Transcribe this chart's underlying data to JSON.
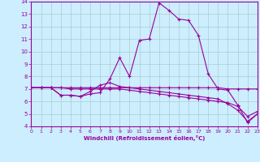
{
  "xlabel": "Windchill (Refroidissement éolien,°C)",
  "bg_color": "#cceeff",
  "grid_color": "#aacccc",
  "line_color": "#990099",
  "xlim": [
    0,
    23
  ],
  "ylim": [
    4,
    14
  ],
  "xticks": [
    0,
    1,
    2,
    3,
    4,
    5,
    6,
    7,
    8,
    9,
    10,
    11,
    12,
    13,
    14,
    15,
    16,
    17,
    18,
    19,
    20,
    21,
    22,
    23
  ],
  "yticks": [
    4,
    5,
    6,
    7,
    8,
    9,
    10,
    11,
    12,
    13,
    14
  ],
  "line1_x": [
    0,
    1,
    2,
    3,
    4,
    5,
    6,
    7,
    8,
    9,
    10,
    11,
    12,
    13,
    14,
    15,
    16,
    17,
    18,
    19,
    20,
    21,
    22,
    23
  ],
  "line1_y": [
    7.1,
    7.1,
    7.1,
    7.1,
    7.1,
    7.1,
    7.1,
    7.1,
    7.1,
    7.1,
    7.1,
    7.1,
    7.1,
    7.1,
    7.1,
    7.1,
    7.1,
    7.1,
    7.1,
    7.1,
    7.0,
    7.0,
    7.0,
    7.0
  ],
  "line2_x": [
    0,
    1,
    2,
    3,
    4,
    5,
    6,
    7,
    8,
    9,
    10,
    11,
    12,
    13,
    14,
    15,
    16,
    17,
    18,
    19,
    20,
    21,
    22,
    23
  ],
  "line2_y": [
    7.1,
    7.1,
    7.1,
    6.5,
    6.5,
    6.4,
    6.6,
    6.7,
    7.8,
    9.5,
    8.0,
    10.9,
    11.0,
    13.9,
    13.3,
    12.6,
    12.5,
    11.3,
    8.2,
    7.0,
    6.9,
    5.7,
    4.3,
    5.0
  ],
  "line3_x": [
    0,
    1,
    2,
    3,
    4,
    5,
    6,
    7,
    8,
    9,
    10,
    11,
    12,
    13,
    14,
    15,
    16,
    17,
    18,
    19,
    20,
    21,
    22,
    23
  ],
  "line3_y": [
    7.1,
    7.1,
    7.1,
    6.5,
    6.5,
    6.4,
    6.8,
    7.3,
    7.5,
    7.2,
    7.1,
    7.0,
    6.9,
    6.8,
    6.7,
    6.6,
    6.5,
    6.4,
    6.3,
    6.2,
    5.8,
    5.3,
    4.4,
    5.0
  ],
  "line4_x": [
    0,
    1,
    2,
    3,
    4,
    5,
    6,
    7,
    8,
    9,
    10,
    11,
    12,
    13,
    14,
    15,
    16,
    17,
    18,
    19,
    20,
    21,
    22,
    23
  ],
  "line4_y": [
    7.1,
    7.1,
    7.1,
    7.1,
    7.0,
    7.0,
    7.0,
    7.0,
    7.0,
    7.0,
    6.9,
    6.8,
    6.7,
    6.6,
    6.5,
    6.4,
    6.3,
    6.2,
    6.1,
    6.0,
    5.9,
    5.6,
    4.8,
    5.2
  ]
}
